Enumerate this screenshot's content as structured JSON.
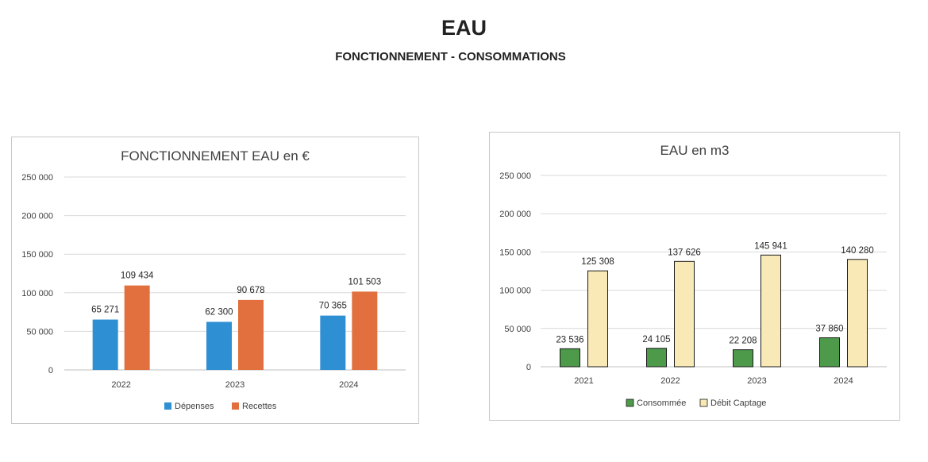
{
  "page": {
    "title": "EAU",
    "subtitle": "FONCTIONNEMENT  -  CONSOMMATIONS"
  },
  "chart_data": [
    {
      "type": "bar",
      "title": "FONCTIONNEMENT EAU en €",
      "categories": [
        "2022",
        "2023",
        "2024"
      ],
      "series": [
        {
          "name": "Dépenses",
          "color": "#2e8fd3",
          "values": [
            65271,
            62300,
            70365
          ],
          "labels": [
            "65 271",
            "62 300",
            "70 365"
          ]
        },
        {
          "name": "Recettes",
          "color": "#e2703e",
          "values": [
            109434,
            90678,
            101503
          ],
          "labels": [
            "109 434",
            "90 678",
            "101 503"
          ]
        }
      ],
      "ylim": [
        0,
        250000
      ],
      "yticks": [
        0,
        50000,
        100000,
        150000,
        200000,
        250000
      ],
      "ytick_labels": [
        "0",
        "50 000",
        "100 000",
        "150 000",
        "200 000",
        "250 000"
      ],
      "grid": true,
      "legend": "bottom"
    },
    {
      "type": "bar",
      "title": "EAU en m3",
      "categories": [
        "2021",
        "2022",
        "2023",
        "2024"
      ],
      "series": [
        {
          "name": "Consommée",
          "color": "#4c9a4a",
          "values": [
            23536,
            24105,
            22208,
            37860
          ],
          "labels": [
            "23 536",
            "24 105",
            "22 208",
            "37 860"
          ]
        },
        {
          "name": "Débit Captage",
          "color": "#f8e9b6",
          "values": [
            125308,
            137626,
            145941,
            140280
          ],
          "labels": [
            "125 308",
            "137 626",
            "145 941",
            "140 280"
          ]
        }
      ],
      "ylim": [
        0,
        250000
      ],
      "yticks": [
        0,
        50000,
        100000,
        150000,
        200000,
        250000
      ],
      "ytick_labels": [
        "0",
        "50 000",
        "100 000",
        "150 000",
        "200 000",
        "250 000"
      ],
      "grid": true,
      "legend": "bottom"
    }
  ]
}
